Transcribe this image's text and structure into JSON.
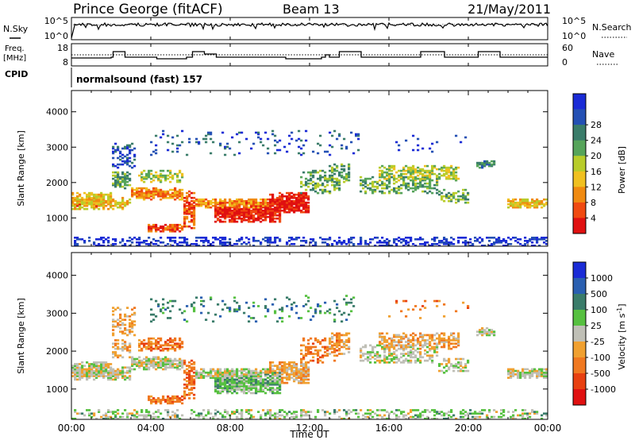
{
  "header": {
    "station": "Prince George (fitACF)",
    "beam": "Beam 13",
    "date": "21/May/2011"
  },
  "top_panels": {
    "nsky_label": "N.Sky",
    "nsky_ticks": [
      "10^5",
      "10^0"
    ],
    "nsearch_label": "N.Search",
    "nsearch_ticks": [
      "10^5",
      "10^0"
    ],
    "freq_label": "Freq.",
    "freq_unit": "[MHz]",
    "freq_ticks": [
      "18",
      "8"
    ],
    "nave_label": "Nave",
    "nave_ticks": [
      "60",
      "0"
    ],
    "cpid_label": "CPID",
    "cpid_value": "normalsound (fast) 157"
  },
  "colors": {
    "power_scale": [
      "#1a2bd6",
      "#2450b4",
      "#3a7c6a",
      "#56a45a",
      "#b8cc2a",
      "#f0c020",
      "#f08a10",
      "#f04a10",
      "#e01010"
    ],
    "velocity_scale": [
      "#1a2bd6",
      "#2a5fb0",
      "#3a7c6a",
      "#56c040",
      "#bfbfb6",
      "#f0a030",
      "#f07820",
      "#e84010",
      "#e01010"
    ]
  },
  "chart_data": [
    {
      "type": "heatmap",
      "title": "",
      "ylabel": "Slant Range [km]",
      "xlabel": "",
      "yticks": [
        "1000",
        "2000",
        "3000",
        "4000"
      ],
      "ylim": [
        200,
        4600
      ],
      "xlim_hours": [
        0,
        24
      ],
      "colorbar_label": "Power [dB]",
      "colorbar_ticks": [
        "4",
        "8",
        "12",
        "16",
        "20",
        "24",
        "28"
      ]
    },
    {
      "type": "heatmap",
      "title": "",
      "ylabel": "Slant Range [km]",
      "xlabel": "Time UT",
      "yticks": [
        "1000",
        "2000",
        "3000",
        "4000"
      ],
      "xticks": [
        "00:00",
        "04:00",
        "08:00",
        "12:00",
        "16:00",
        "20:00",
        "00:00"
      ],
      "ylim": [
        200,
        4600
      ],
      "xlim_hours": [
        0,
        24
      ],
      "colorbar_label": "Velocity [m s",
      "colorbar_label_sup": "-1",
      "colorbar_label_end": "]",
      "colorbar_ticks": [
        "1000",
        "500",
        "100",
        "25",
        "-25",
        "-100",
        "-500",
        "-1000"
      ]
    }
  ]
}
